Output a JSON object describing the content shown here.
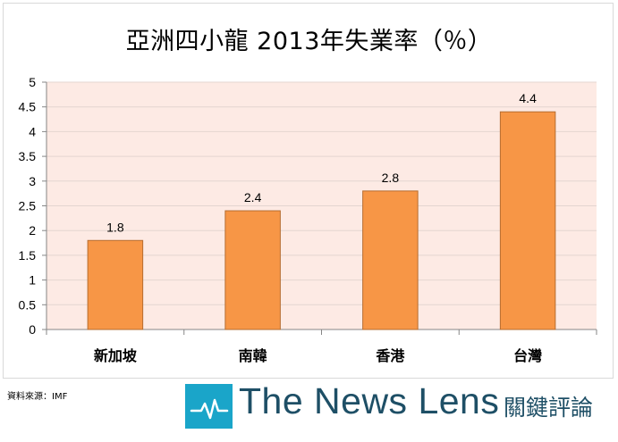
{
  "chart_data": {
    "type": "bar",
    "title": "亞洲四小龍 2013年失業率（％）",
    "categories": [
      "新加坡",
      "南韓",
      "香港",
      "台灣"
    ],
    "values": [
      1.8,
      2.4,
      2.8,
      4.4
    ],
    "data_labels": [
      "1.8",
      "2.4",
      "2.8",
      "4.4"
    ],
    "xlabel": "",
    "ylabel": "",
    "ylim": [
      0,
      5
    ],
    "yticks": [
      "0",
      "0.5",
      "1",
      "1.5",
      "2",
      "2.5",
      "3",
      "3.5",
      "4",
      "4.5",
      "5"
    ],
    "grid": true,
    "legend": "none",
    "bar_color": "#f79646",
    "bar_border_color": "#b66d31",
    "plot_background": "#fdeae4",
    "grid_color": "#e4d5d0"
  },
  "footer": {
    "source": "資料來源：IMF",
    "brand_name": "The News Lens",
    "brand_sub": "關鍵評論",
    "logo_icon": "pulse-line-icon",
    "logo_color": "#1aa5c9",
    "brand_color": "#1e4f66"
  }
}
